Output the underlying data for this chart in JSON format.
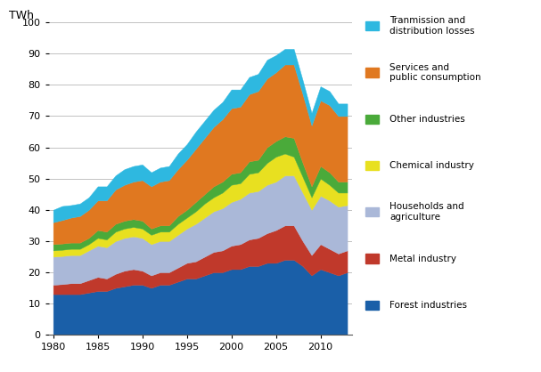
{
  "years": [
    1980,
    1981,
    1982,
    1983,
    1984,
    1985,
    1986,
    1987,
    1988,
    1989,
    1990,
    1991,
    1992,
    1993,
    1994,
    1995,
    1996,
    1997,
    1998,
    1999,
    2000,
    2001,
    2002,
    2003,
    2004,
    2005,
    2006,
    2007,
    2008,
    2009,
    2010,
    2011,
    2012,
    2013
  ],
  "forest_industries": [
    13,
    13,
    13,
    13,
    13.5,
    14,
    14,
    15,
    15.5,
    16,
    16,
    15,
    16,
    16,
    17,
    18,
    18,
    19,
    20,
    20,
    21,
    21,
    22,
    22,
    23,
    23,
    24,
    24,
    22,
    19,
    21,
    20,
    19,
    20
  ],
  "metal_industry": [
    3,
    3.2,
    3.5,
    3.5,
    4,
    4.5,
    4,
    4.5,
    5,
    5,
    4.5,
    4,
    4,
    4,
    4.5,
    5,
    5.5,
    6,
    6.5,
    7,
    7.5,
    8,
    8.5,
    9,
    9.5,
    10.5,
    11,
    11,
    8,
    6.5,
    8,
    7.5,
    7,
    7
  ],
  "households_agriculture": [
    9,
    9,
    9,
    9,
    9.5,
    10,
    10,
    10.5,
    10.5,
    10.5,
    10.5,
    10,
    10,
    10,
    10.5,
    11,
    12,
    12.5,
    13,
    13.5,
    14,
    14.5,
    15,
    15,
    15.5,
    15.5,
    16,
    16,
    15.5,
    14.5,
    15.5,
    15.5,
    15,
    14.5
  ],
  "chemical_industry": [
    2,
    2,
    2,
    2,
    2,
    2.5,
    2.5,
    3,
    3,
    3,
    3,
    3,
    3,
    3,
    3.5,
    3.5,
    4,
    4.5,
    4.5,
    5,
    5.5,
    5,
    6,
    6,
    7,
    8,
    7,
    6,
    5,
    4,
    5.5,
    5,
    4.5,
    4
  ],
  "other_industries": [
    2,
    2,
    2,
    2,
    2,
    2.5,
    2.5,
    2.5,
    2.5,
    2.5,
    2.5,
    2,
    2,
    2,
    2.5,
    2.5,
    3,
    3,
    3.5,
    3.5,
    3.5,
    3.5,
    4,
    4,
    5,
    5,
    5.5,
    6,
    4.5,
    3.5,
    4,
    4,
    3.5,
    3.5
  ],
  "services_public": [
    7,
    7.5,
    8,
    8.5,
    9,
    9.5,
    10,
    11,
    11.5,
    12,
    13,
    13.5,
    14,
    14.5,
    15,
    16,
    17,
    18,
    19,
    20,
    21,
    21,
    21.5,
    22,
    22,
    22,
    23,
    23.5,
    22,
    19.5,
    21,
    21.5,
    21,
    21
  ],
  "transmission_losses": [
    4,
    4.5,
    4,
    4,
    4,
    4.5,
    4.5,
    4.5,
    5,
    5,
    5,
    4.5,
    4.5,
    4.5,
    5,
    5,
    5.5,
    5.5,
    5.5,
    5.5,
    6,
    5.5,
    5.5,
    5.5,
    6,
    5.5,
    5,
    5,
    4.5,
    4,
    4.5,
    4.5,
    4,
    4
  ],
  "colors": {
    "forest_industries": "#1a5fa8",
    "metal_industry": "#c0392b",
    "households_agriculture": "#aab8d8",
    "chemical_industry": "#e8e020",
    "other_industries": "#4aaa3a",
    "services_public": "#e07820",
    "transmission_losses": "#2eb8e0"
  },
  "labels": {
    "forest_industries": "Forest industries",
    "metal_industry": "Metal industry",
    "households_agriculture": "Households and\nagriculture",
    "chemical_industry": "Chemical industry",
    "other_industries": "Other industries",
    "services_public": "Services and\npublic consumption",
    "transmission_losses": "Tranmission and\ndistribution losses"
  },
  "ylabel": "TWh",
  "ylim": [
    0,
    100
  ],
  "yticks": [
    0,
    10,
    20,
    30,
    40,
    50,
    60,
    70,
    80,
    90,
    100
  ],
  "xticks": [
    1980,
    1985,
    1990,
    1995,
    2000,
    2005,
    2010
  ],
  "xlim": [
    1979.5,
    2013.5
  ],
  "figsize": [
    6.07,
    4.18
  ],
  "dpi": 100
}
